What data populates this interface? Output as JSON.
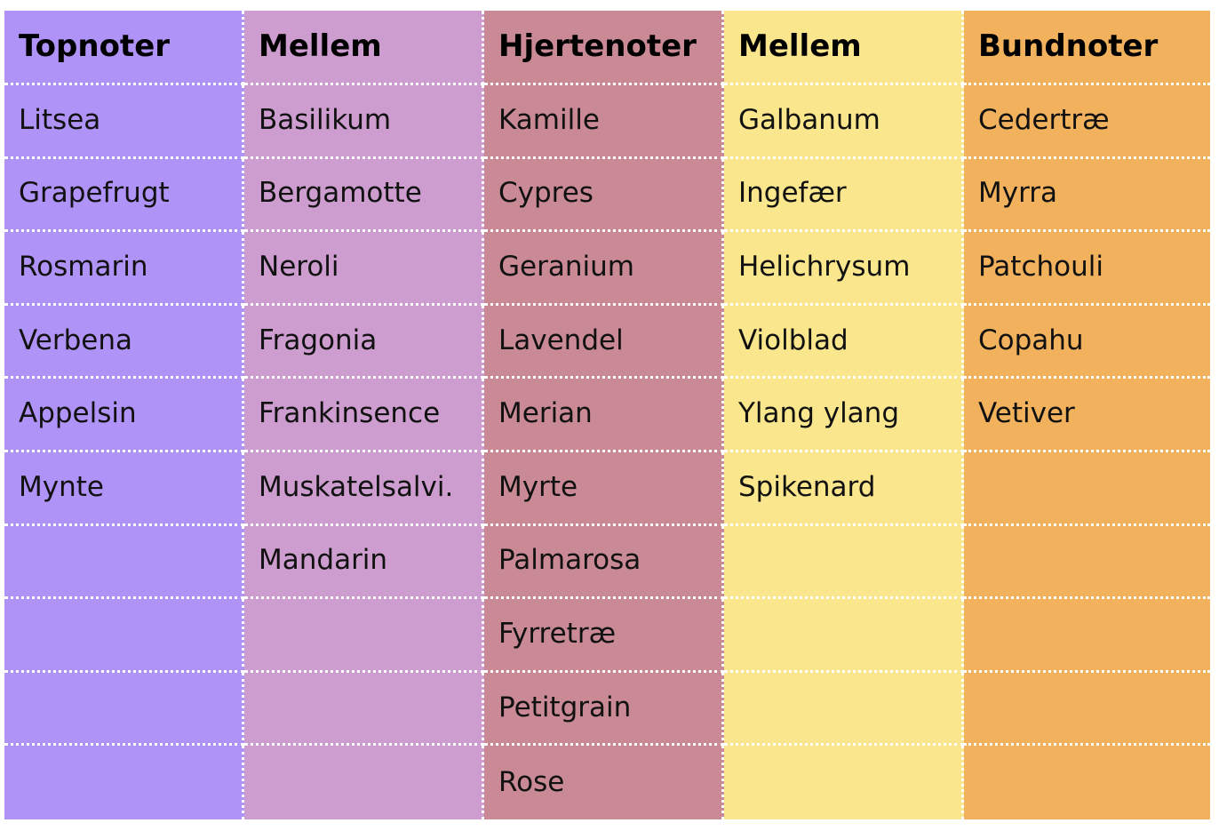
{
  "colors": [
    "#b093f6",
    "#cc9dce",
    "#c98a95",
    "#fae68c",
    "#f2b25d"
  ],
  "columns": [
    {
      "header": "Topnoter",
      "items": [
        "Litsea",
        "Grapefrugt",
        "Rosmarin",
        "Verbena",
        "Appelsin",
        "Mynte",
        "",
        "",
        "",
        ""
      ]
    },
    {
      "header": "Mellem",
      "items": [
        "Basilikum",
        "Bergamotte",
        "Neroli",
        "Fragonia",
        "Frankinsence",
        "Muskatelsalvi.",
        "Mandarin",
        "",
        "",
        ""
      ]
    },
    {
      "header": "Hjertenoter",
      "items": [
        "Kamille",
        "Cypres",
        "Geranium",
        "Lavendel",
        "Merian",
        "Myrte",
        "Palmarosa",
        "Fyrretræ",
        "Petitgrain",
        "Rose"
      ]
    },
    {
      "header": "Mellem",
      "items": [
        "Galbanum",
        "Ingefær",
        "Helichrysum",
        "Violblad",
        "Ylang ylang",
        "Spikenard",
        "",
        "",
        "",
        ""
      ]
    },
    {
      "header": "Bundnoter",
      "items": [
        "Cedertræ",
        "Myrra",
        "Patchouli",
        "Copahu",
        "Vetiver",
        "",
        "",
        "",
        "",
        ""
      ]
    }
  ]
}
